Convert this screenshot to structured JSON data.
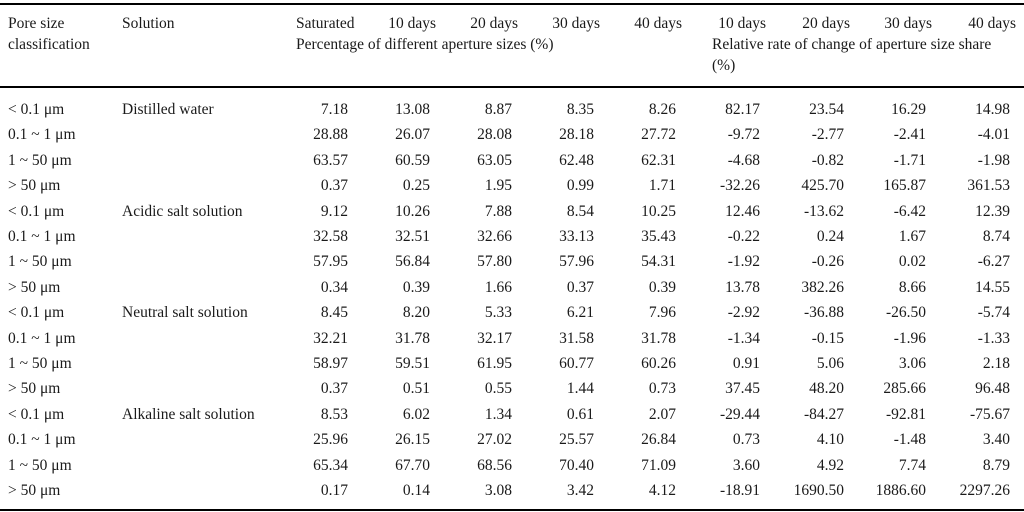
{
  "table": {
    "col1_header": "Pore size classification",
    "col2_header": "Solution",
    "value_cols": [
      "Saturated",
      "10 days",
      "20 days",
      "30 days",
      "40 days",
      "10 days",
      "20 days",
      "30 days",
      "40 days"
    ],
    "group1_subheader": "Percentage of different aperture sizes (%)",
    "group2_subheader": "Relative rate of change of aperture size share (%)",
    "rows": [
      {
        "pore": "< 0.1 μm",
        "solution": "Distilled water",
        "values": [
          "7.18",
          "13.08",
          "8.87",
          "8.35",
          "8.26",
          "82.17",
          "23.54",
          "16.29",
          "14.98"
        ]
      },
      {
        "pore": "0.1 ~ 1 μm",
        "solution": "",
        "values": [
          "28.88",
          "26.07",
          "28.08",
          "28.18",
          "27.72",
          "-9.72",
          "-2.77",
          "-2.41",
          "-4.01"
        ]
      },
      {
        "pore": "1 ~ 50 μm",
        "solution": "",
        "values": [
          "63.57",
          "60.59",
          "63.05",
          "62.48",
          "62.31",
          "-4.68",
          "-0.82",
          "-1.71",
          "-1.98"
        ]
      },
      {
        "pore": "> 50 μm",
        "solution": "",
        "values": [
          "0.37",
          "0.25",
          "1.95",
          "0.99",
          "1.71",
          "-32.26",
          "425.70",
          "165.87",
          "361.53"
        ]
      },
      {
        "pore": "< 0.1 μm",
        "solution": "Acidic salt solution",
        "values": [
          "9.12",
          "10.26",
          "7.88",
          "8.54",
          "10.25",
          "12.46",
          "-13.62",
          "-6.42",
          "12.39"
        ]
      },
      {
        "pore": "0.1 ~ 1 μm",
        "solution": "",
        "values": [
          "32.58",
          "32.51",
          "32.66",
          "33.13",
          "35.43",
          "-0.22",
          "0.24",
          "1.67",
          "8.74"
        ]
      },
      {
        "pore": "1 ~ 50 μm",
        "solution": "",
        "values": [
          "57.95",
          "56.84",
          "57.80",
          "57.96",
          "54.31",
          "-1.92",
          "-0.26",
          "0.02",
          "-6.27"
        ]
      },
      {
        "pore": "> 50 μm",
        "solution": "",
        "values": [
          "0.34",
          "0.39",
          "1.66",
          "0.37",
          "0.39",
          "13.78",
          "382.26",
          "8.66",
          "14.55"
        ]
      },
      {
        "pore": "< 0.1 μm",
        "solution": "Neutral salt solution",
        "values": [
          "8.45",
          "8.20",
          "5.33",
          "6.21",
          "7.96",
          "-2.92",
          "-36.88",
          "-26.50",
          "-5.74"
        ]
      },
      {
        "pore": "0.1 ~ 1 μm",
        "solution": "",
        "values": [
          "32.21",
          "31.78",
          "32.17",
          "31.58",
          "31.78",
          "-1.34",
          "-0.15",
          "-1.96",
          "-1.33"
        ]
      },
      {
        "pore": "1 ~ 50 μm",
        "solution": "",
        "values": [
          "58.97",
          "59.51",
          "61.95",
          "60.77",
          "60.26",
          "0.91",
          "5.06",
          "3.06",
          "2.18"
        ]
      },
      {
        "pore": "> 50 μm",
        "solution": "",
        "values": [
          "0.37",
          "0.51",
          "0.55",
          "1.44",
          "0.73",
          "37.45",
          "48.20",
          "285.66",
          "96.48"
        ]
      },
      {
        "pore": "< 0.1 μm",
        "solution": "Alkaline salt solution",
        "values": [
          "8.53",
          "6.02",
          "1.34",
          "0.61",
          "2.07",
          "-29.44",
          "-84.27",
          "-92.81",
          "-75.67"
        ]
      },
      {
        "pore": "0.1 ~ 1 μm",
        "solution": "",
        "values": [
          "25.96",
          "26.15",
          "27.02",
          "25.57",
          "26.84",
          "0.73",
          "4.10",
          "-1.48",
          "3.40"
        ]
      },
      {
        "pore": "1 ~ 50 μm",
        "solution": "",
        "values": [
          "65.34",
          "67.70",
          "68.56",
          "70.40",
          "71.09",
          "3.60",
          "4.92",
          "7.74",
          "8.79"
        ]
      },
      {
        "pore": "> 50 μm",
        "solution": "",
        "values": [
          "0.17",
          "0.14",
          "3.08",
          "3.42",
          "4.12",
          "-18.91",
          "1690.50",
          "1886.60",
          "2297.26"
        ]
      }
    ]
  }
}
